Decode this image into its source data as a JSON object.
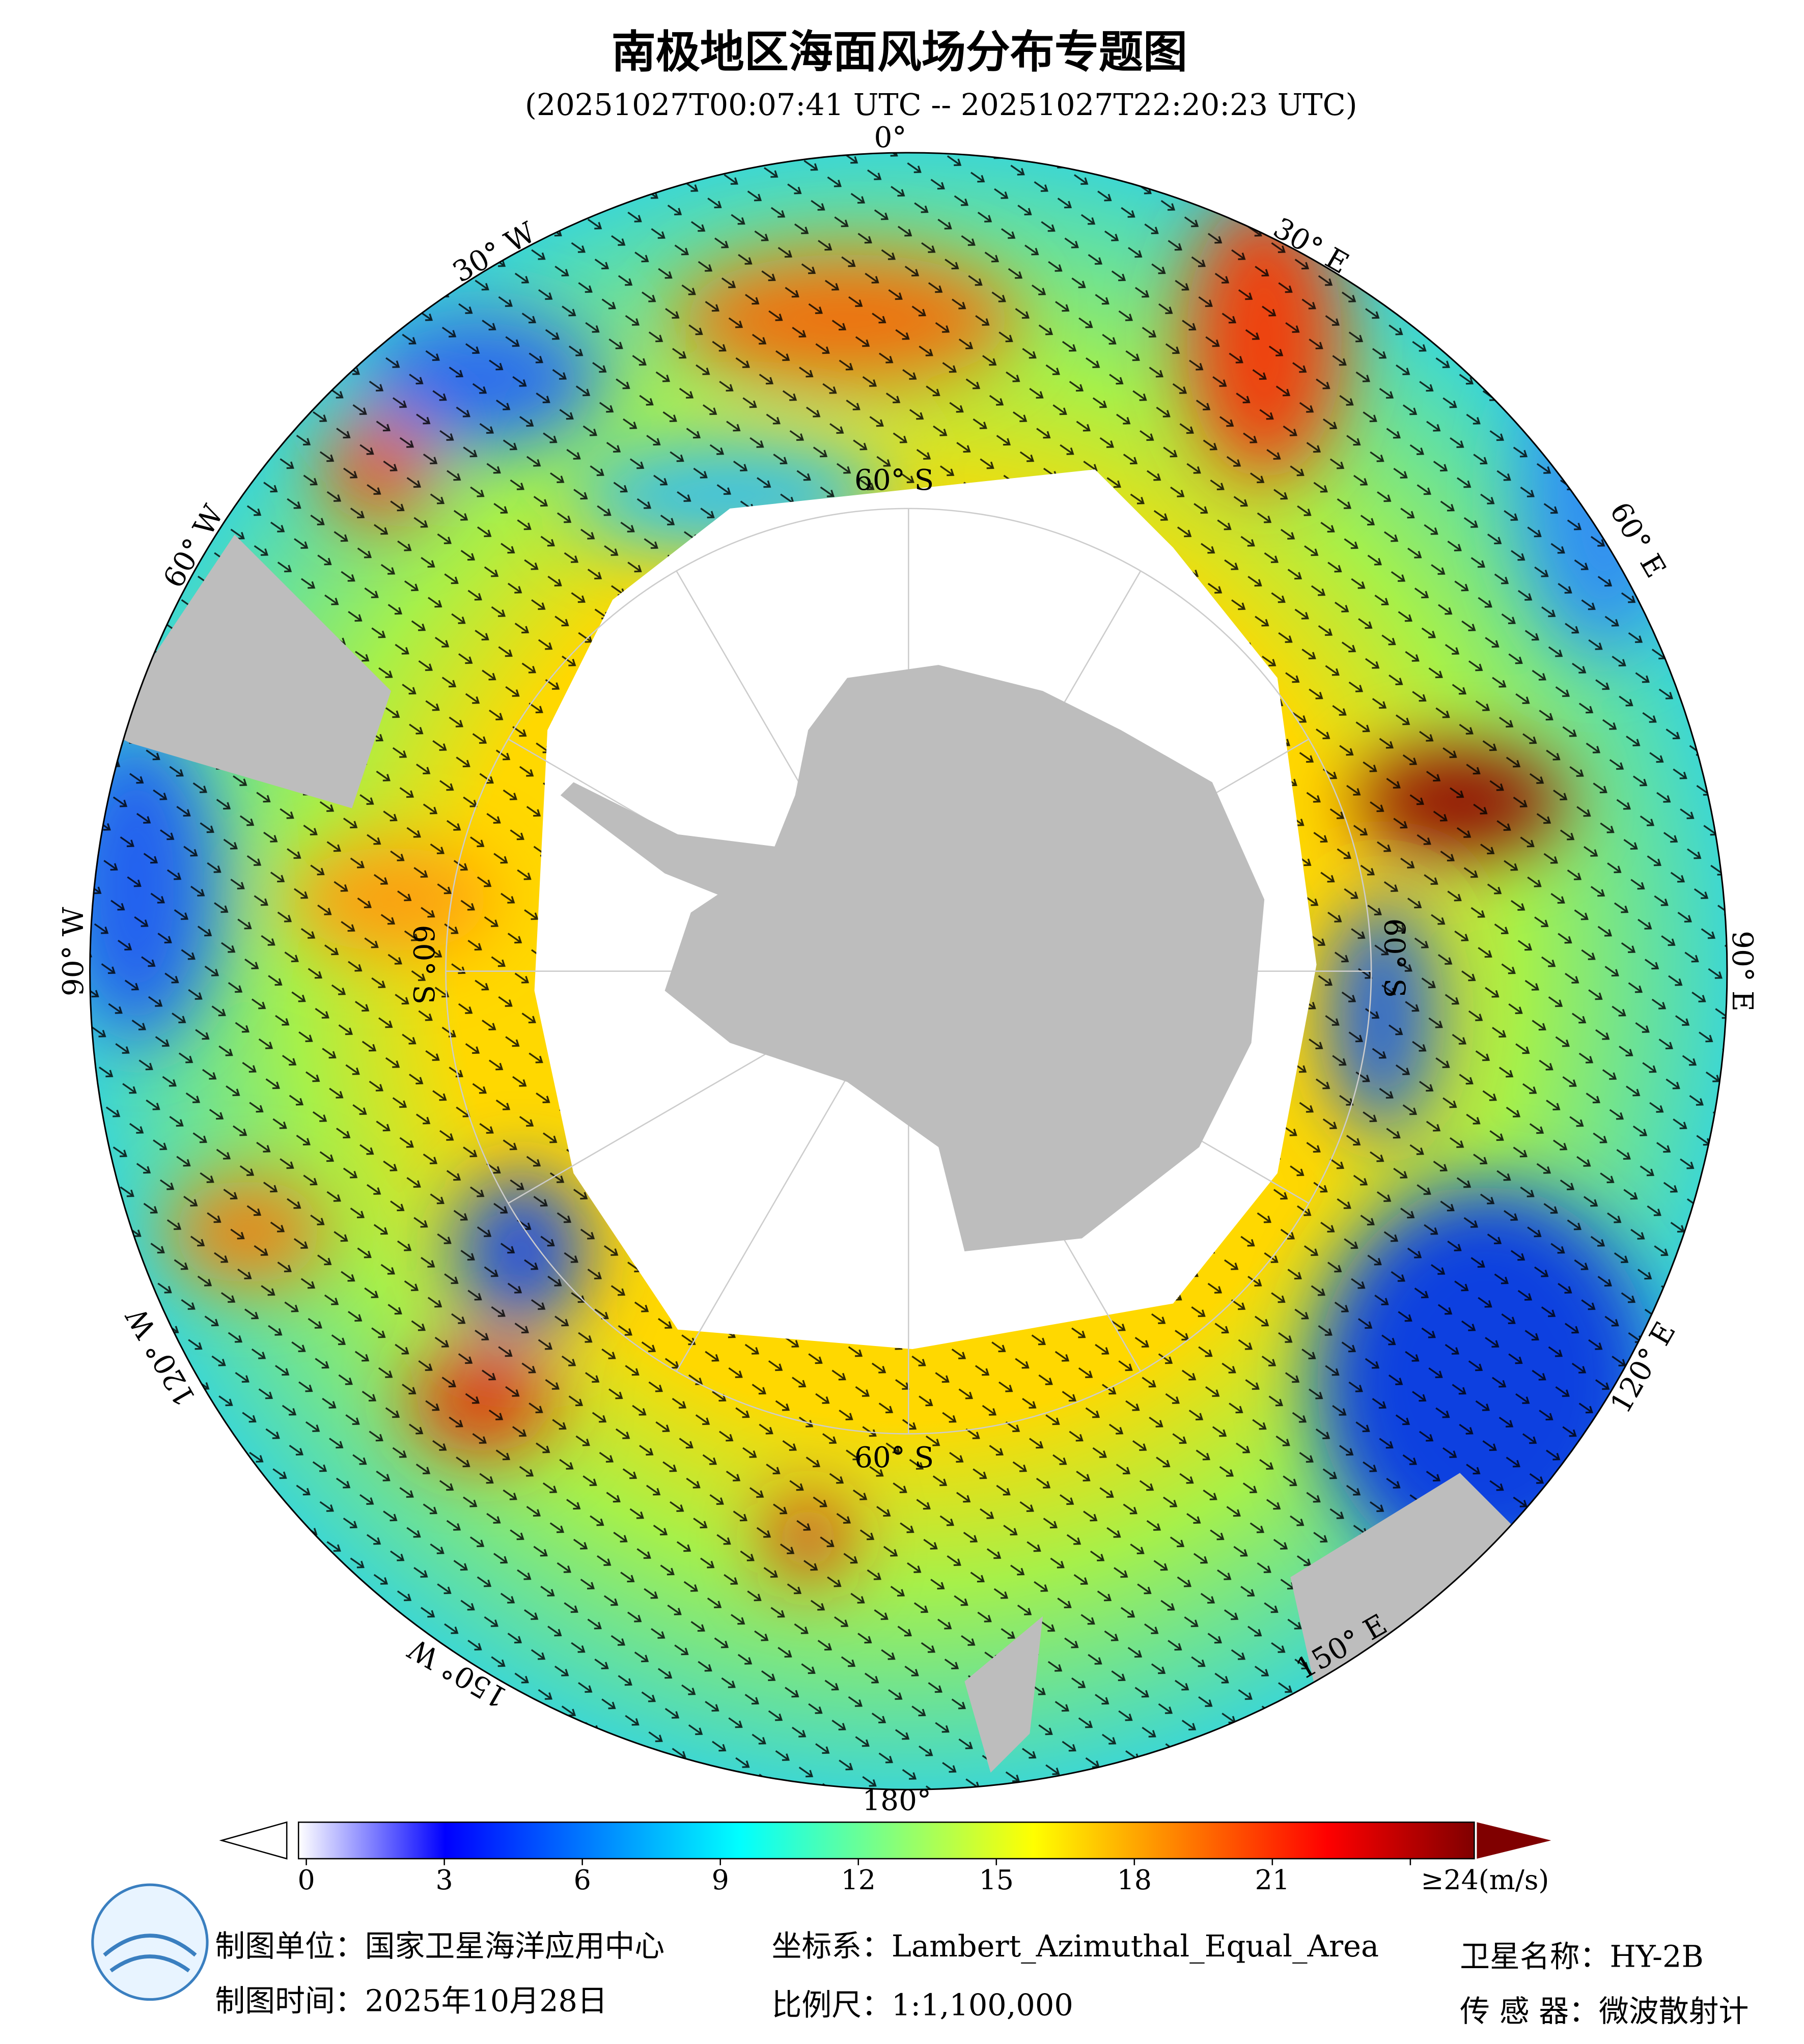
{
  "title": "南极地区海面风场分布专题图",
  "subtitle": "(20251027T00:07:41 UTC -- 20251027T22:20:23 UTC)",
  "map": {
    "longitude_labels": [
      "0°",
      "30° E",
      "60° E",
      "90° E",
      "120° E",
      "150° E",
      "180°",
      "150° W",
      "120° W",
      "90° W",
      "60° W",
      "30° W"
    ],
    "latitude_labels": [
      "60° S",
      "60° S",
      "60° S",
      "60° S"
    ]
  },
  "colorbar": {
    "range": [
      0,
      24
    ],
    "ticks": [
      0,
      3,
      6,
      9,
      12,
      15,
      18,
      21,
      {
        "value": 24,
        "label": "≥24(m/s)"
      }
    ],
    "colors": [
      "#ffffff",
      "#0000ff",
      "#0080ff",
      "#00ffff",
      "#80ff80",
      "#ffff00",
      "#ff8000",
      "#ff0000",
      "#800000"
    ]
  },
  "footer": {
    "producer": "制图单位：国家卫星海洋应用中心",
    "date": "制图时间：2025年10月28日",
    "projection": "坐标系：Lambert_Azimuthal_Equal_Area",
    "scale": "比例尺：1:1,100,000",
    "satellite": "卫星名称：HY-2B",
    "sensor": "传 感 器：微波散射计"
  }
}
